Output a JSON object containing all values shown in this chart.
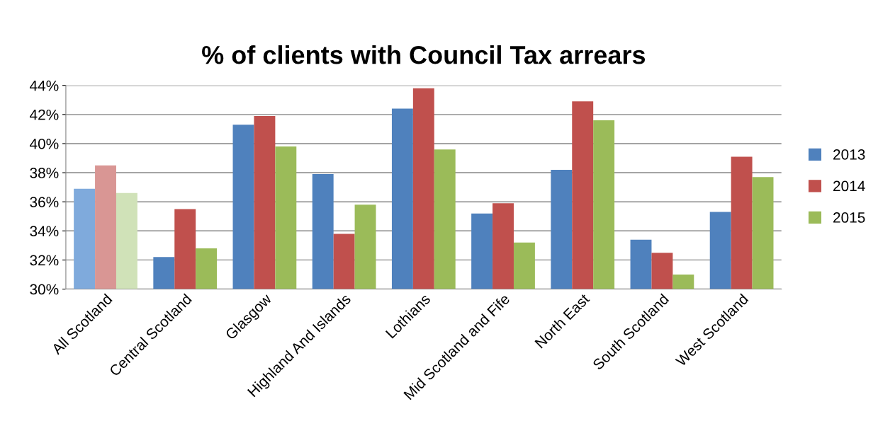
{
  "chart_data": {
    "type": "bar",
    "title": "% of clients with Council Tax arrears",
    "categories": [
      "All Scotland",
      "Central Scotland",
      "Glasgow",
      "Highland And Islands",
      "Lothians",
      "Mid Scotland and Fife",
      "North East",
      "South Scotland",
      "West Scotland"
    ],
    "series": [
      {
        "name": "2013",
        "color": "#4f81bd",
        "colors": [
          "#7faadc",
          "#4f81bd",
          "#4f81bd",
          "#4f81bd",
          "#4f81bd",
          "#4f81bd",
          "#4f81bd",
          "#4f81bd",
          "#4f81bd"
        ],
        "values": [
          36.9,
          32.2,
          41.3,
          37.9,
          42.4,
          35.2,
          38.2,
          33.4,
          35.3
        ]
      },
      {
        "name": "2014",
        "color": "#c0504d",
        "colors": [
          "#d99694",
          "#c0504d",
          "#c0504d",
          "#c0504d",
          "#c0504d",
          "#c0504d",
          "#c0504d",
          "#c0504d",
          "#c0504d"
        ],
        "values": [
          38.5,
          35.5,
          41.9,
          33.8,
          43.8,
          35.9,
          42.9,
          32.5,
          39.1
        ]
      },
      {
        "name": "2015",
        "color": "#9bbb59",
        "colors": [
          "#d0e2b8",
          "#9bbb59",
          "#9bbb59",
          "#9bbb59",
          "#9bbb59",
          "#9bbb59",
          "#9bbb59",
          "#9bbb59",
          "#9bbb59"
        ],
        "values": [
          36.6,
          32.8,
          39.8,
          35.8,
          39.6,
          33.2,
          41.6,
          31.0,
          37.7
        ]
      }
    ],
    "ylim": [
      30,
      44
    ],
    "yticks": [
      {
        "value": 30,
        "label": "30%"
      },
      {
        "value": 32,
        "label": "32%"
      },
      {
        "value": 34,
        "label": "34%"
      },
      {
        "value": 36,
        "label": "36%"
      },
      {
        "value": 38,
        "label": "38%"
      },
      {
        "value": 40,
        "label": "40%"
      },
      {
        "value": 42,
        "label": "42%"
      },
      {
        "value": 44,
        "label": "44%"
      }
    ],
    "grid": "y",
    "legend": "right"
  }
}
